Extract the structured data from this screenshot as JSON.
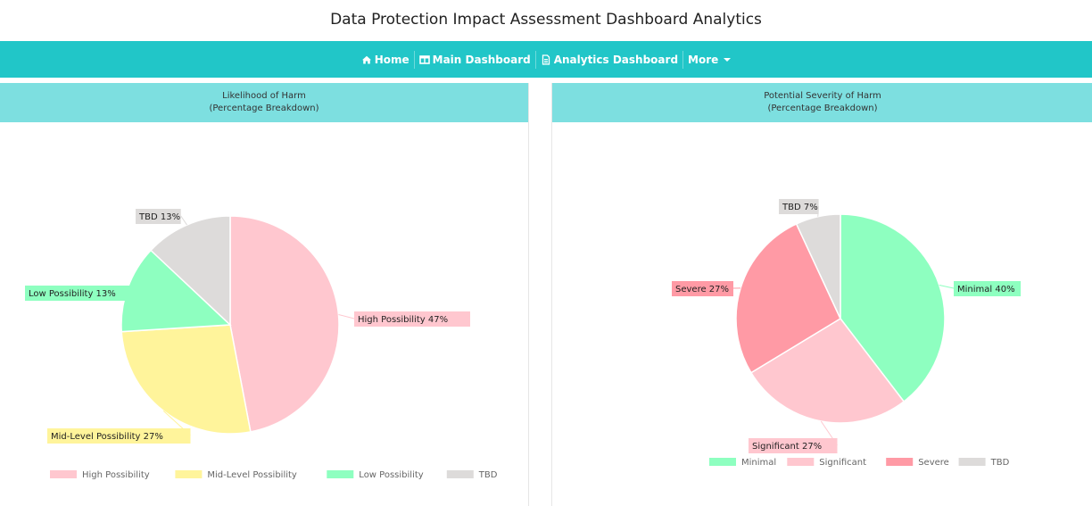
{
  "page": {
    "title": "Data Protection Impact Assessment Dashboard Analytics"
  },
  "navbar": {
    "items": [
      {
        "label": "Home",
        "icon": "home-icon"
      },
      {
        "label": "Main Dashboard",
        "icon": "dashboard-icon"
      },
      {
        "label": "Analytics Dashboard",
        "icon": "document-icon"
      },
      {
        "label": "More",
        "icon": "caret-down-icon"
      }
    ],
    "background": "#21c6c8"
  },
  "panels": [
    {
      "title": "Likelihood of Harm",
      "subtitle": "(Percentage Breakdown)"
    },
    {
      "title": "Potential Severity of Harm",
      "subtitle": "(Percentage Breakdown)"
    }
  ],
  "chart_data": [
    {
      "type": "pie",
      "title": "Likelihood of Harm",
      "subtitle": "(Percentage Breakdown)",
      "legend_position": "bottom",
      "slices": [
        {
          "label": "High Possibility",
          "value": 47,
          "display": "High Possibility 47%",
          "color": "#ffc7cf"
        },
        {
          "label": "Mid-Level Possibility",
          "value": 27,
          "display": "Mid-Level Possibility 27%",
          "color": "#fff49b"
        },
        {
          "label": "Low Possibility",
          "value": 13,
          "display": "Low Possibility 13%",
          "color": "#8effc0"
        },
        {
          "label": "TBD",
          "value": 13,
          "display": "TBD 13%",
          "color": "#dddbda"
        }
      ]
    },
    {
      "type": "pie",
      "title": "Potential Severity of Harm",
      "subtitle": "(Percentage Breakdown)",
      "legend_position": "bottom",
      "slices": [
        {
          "label": "Minimal",
          "value": 40,
          "display": "Minimal 40%",
          "color": "#8effc0"
        },
        {
          "label": "Significant",
          "value": 27,
          "display": "Significant 27%",
          "color": "#ffc7cf"
        },
        {
          "label": "Severe",
          "value": 27,
          "display": "Severe 27%",
          "color": "#ff9aa5"
        },
        {
          "label": "TBD",
          "value": 7,
          "display": "TBD 7%",
          "color": "#dddbda"
        }
      ]
    }
  ]
}
